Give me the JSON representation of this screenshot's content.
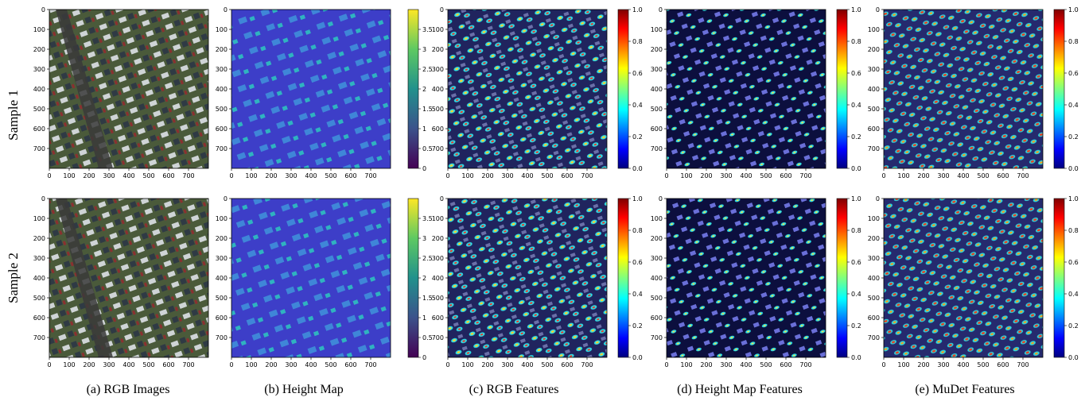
{
  "rows": [
    {
      "label": "Sample 1"
    },
    {
      "label": "Sample 2"
    }
  ],
  "captions": [
    "(a) RGB Images",
    "(b) Height Map",
    "(c) RGB Features",
    "(d) Height Map Features",
    "(e) MuDet  Features"
  ],
  "panel_axes": {
    "y_ticks": [
      "0",
      "100",
      "200",
      "300",
      "400",
      "500",
      "600",
      "700"
    ],
    "x_ticks": [
      "0",
      "100",
      "200",
      "300",
      "400",
      "500",
      "600",
      "700"
    ]
  },
  "colorbars": {
    "height": {
      "ticks": [
        "3.5",
        "3",
        "2.5",
        "2",
        "1.5",
        "1",
        "0.5",
        "0"
      ]
    },
    "feature": {
      "ticks": [
        "1.0",
        "0.8",
        "0.6",
        "0.4",
        "0.2",
        "0.0"
      ]
    }
  },
  "colors": {
    "viridis": [
      "#440154",
      "#3b528b",
      "#21918c",
      "#5ec962",
      "#fde725"
    ],
    "jet": [
      "#00007f",
      "#0000ff",
      "#00ffff",
      "#7fff7f",
      "#ffff00",
      "#ff0000",
      "#7f0000"
    ]
  }
}
